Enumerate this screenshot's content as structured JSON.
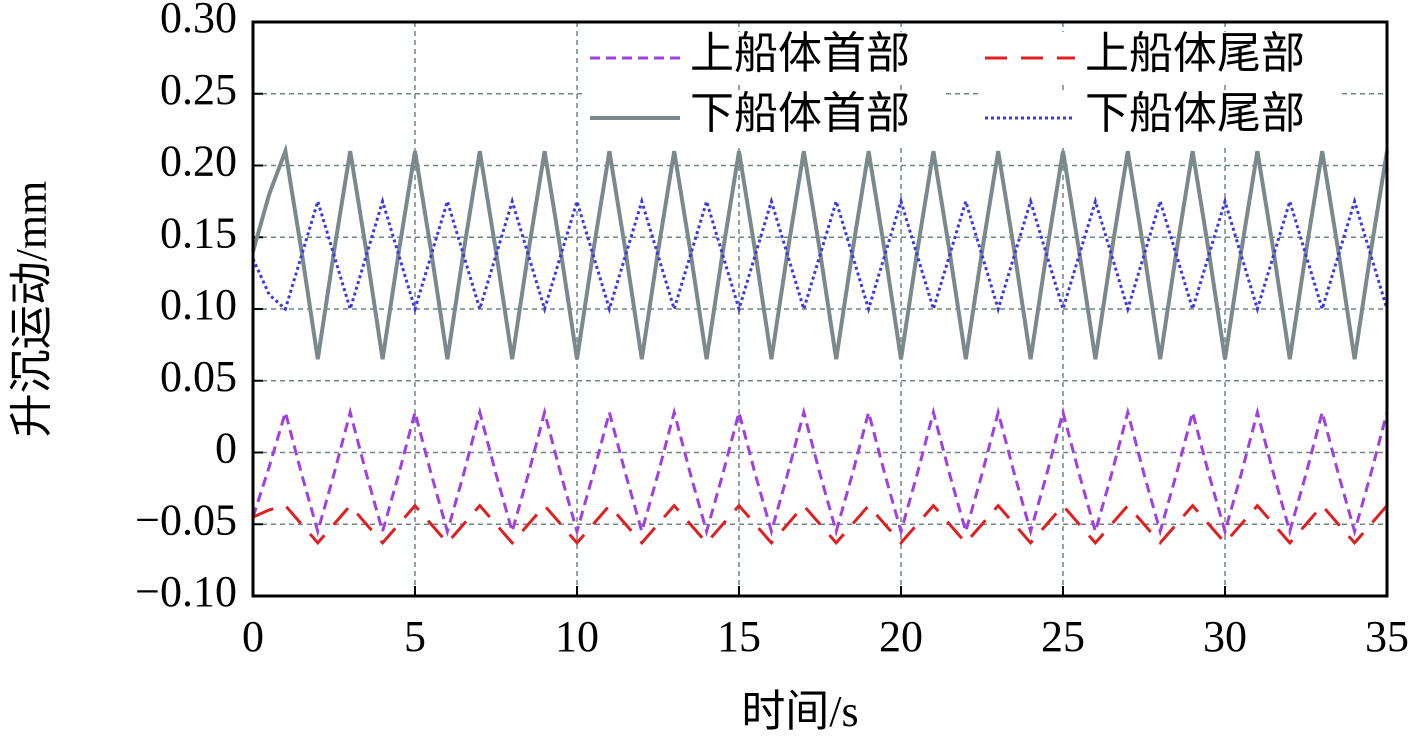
{
  "chart_data": {
    "type": "line",
    "xlabel": "时间/s",
    "ylabel": "升沉运动/mm",
    "x": [
      0,
      0.5,
      1,
      1.5,
      2,
      2.5,
      3,
      3.5,
      4,
      4.5,
      5,
      5.5,
      6,
      6.5,
      7,
      7.5,
      8,
      8.5,
      9,
      9.5,
      10,
      10.5,
      11,
      11.5,
      12,
      12.5,
      13,
      13.5,
      14,
      14.5,
      15,
      15.5,
      16,
      16.5,
      17,
      17.5,
      18,
      18.5,
      19,
      19.5,
      20,
      20.5,
      21,
      21.5,
      22,
      22.5,
      23,
      23.5,
      24,
      24.5,
      25,
      25.5,
      26,
      26.5,
      27,
      27.5,
      28,
      28.5,
      29,
      29.5,
      30,
      30.5,
      31,
      31.5,
      32,
      32.5,
      33,
      33.5,
      34,
      34.5,
      35
    ],
    "series": [
      {
        "name": "上船体首部",
        "color": "#a040e0",
        "dash": "10,6",
        "width": 3,
        "values": [
          -0.045,
          -0.01,
          0.028,
          -0.015,
          -0.055,
          -0.015,
          0.028,
          -0.015,
          -0.055,
          -0.015,
          0.028,
          -0.015,
          -0.055,
          -0.015,
          0.028,
          -0.015,
          -0.055,
          -0.015,
          0.028,
          -0.015,
          -0.055,
          -0.015,
          0.028,
          -0.015,
          -0.055,
          -0.015,
          0.028,
          -0.015,
          -0.055,
          -0.015,
          0.028,
          -0.015,
          -0.055,
          -0.015,
          0.028,
          -0.015,
          -0.055,
          -0.015,
          0.028,
          -0.015,
          -0.055,
          -0.015,
          0.028,
          -0.015,
          -0.055,
          -0.015,
          0.028,
          -0.015,
          -0.055,
          -0.015,
          0.028,
          -0.015,
          -0.055,
          -0.015,
          0.028,
          -0.015,
          -0.055,
          -0.015,
          0.028,
          -0.015,
          -0.055,
          -0.015,
          0.028,
          -0.015,
          -0.055,
          -0.015,
          0.028,
          -0.015,
          -0.055,
          -0.015,
          0.028
        ]
      },
      {
        "name": "上船体尾部",
        "color": "#e02020",
        "dash": "22,14",
        "width": 3,
        "values": [
          -0.045,
          -0.04,
          -0.037,
          -0.05,
          -0.063,
          -0.05,
          -0.037,
          -0.05,
          -0.063,
          -0.05,
          -0.037,
          -0.05,
          -0.063,
          -0.05,
          -0.037,
          -0.05,
          -0.063,
          -0.05,
          -0.037,
          -0.05,
          -0.063,
          -0.05,
          -0.037,
          -0.05,
          -0.063,
          -0.05,
          -0.037,
          -0.05,
          -0.063,
          -0.05,
          -0.037,
          -0.05,
          -0.063,
          -0.05,
          -0.037,
          -0.05,
          -0.063,
          -0.05,
          -0.037,
          -0.05,
          -0.063,
          -0.05,
          -0.037,
          -0.05,
          -0.063,
          -0.05,
          -0.037,
          -0.05,
          -0.063,
          -0.05,
          -0.037,
          -0.05,
          -0.063,
          -0.05,
          -0.037,
          -0.05,
          -0.063,
          -0.05,
          -0.037,
          -0.05,
          -0.063,
          -0.05,
          -0.037,
          -0.05,
          -0.063,
          -0.05,
          -0.037,
          -0.05,
          -0.063,
          -0.05,
          -0.037
        ]
      },
      {
        "name": "下船体首部",
        "color": "#7a8a8c",
        "dash": "none",
        "width": 4,
        "values": [
          0.14,
          0.18,
          0.21,
          0.14,
          0.065,
          0.14,
          0.21,
          0.14,
          0.065,
          0.14,
          0.21,
          0.14,
          0.065,
          0.14,
          0.21,
          0.14,
          0.065,
          0.14,
          0.21,
          0.14,
          0.065,
          0.14,
          0.21,
          0.14,
          0.065,
          0.14,
          0.21,
          0.14,
          0.065,
          0.14,
          0.21,
          0.14,
          0.065,
          0.14,
          0.21,
          0.14,
          0.065,
          0.14,
          0.21,
          0.14,
          0.065,
          0.14,
          0.21,
          0.14,
          0.065,
          0.14,
          0.21,
          0.14,
          0.065,
          0.14,
          0.21,
          0.14,
          0.065,
          0.14,
          0.21,
          0.14,
          0.065,
          0.14,
          0.21,
          0.14,
          0.065,
          0.14,
          0.21,
          0.14,
          0.065,
          0.14,
          0.21,
          0.14,
          0.065,
          0.14,
          0.21
        ]
      },
      {
        "name": "下船体尾部",
        "color": "#3a3adf",
        "dash": "3,3",
        "width": 3,
        "values": [
          0.135,
          0.11,
          0.1,
          0.1375,
          0.175,
          0.1375,
          0.1,
          0.1375,
          0.175,
          0.1375,
          0.1,
          0.1375,
          0.175,
          0.1375,
          0.1,
          0.1375,
          0.175,
          0.1375,
          0.1,
          0.1375,
          0.175,
          0.1375,
          0.1,
          0.1375,
          0.175,
          0.1375,
          0.1,
          0.1375,
          0.175,
          0.1375,
          0.1,
          0.1375,
          0.175,
          0.1375,
          0.1,
          0.1375,
          0.175,
          0.1375,
          0.1,
          0.1375,
          0.175,
          0.1375,
          0.1,
          0.1375,
          0.175,
          0.1375,
          0.1,
          0.1375,
          0.175,
          0.1375,
          0.1,
          0.1375,
          0.175,
          0.1375,
          0.1,
          0.1375,
          0.175,
          0.1375,
          0.1,
          0.1375,
          0.175,
          0.1375,
          0.1,
          0.1375,
          0.175,
          0.1375,
          0.1,
          0.1375,
          0.175,
          0.1375,
          0.1
        ]
      }
    ],
    "xlim": [
      0,
      35
    ],
    "xticks": [
      0,
      5,
      10,
      15,
      20,
      25,
      30,
      35
    ],
    "ylim": [
      -0.1,
      0.3
    ],
    "yticks": [
      {
        "value": -0.1,
        "label": "−0.10"
      },
      {
        "value": -0.05,
        "label": "−0.05"
      },
      0,
      0.05,
      {
        "value": 0.1,
        "label": "0.10"
      },
      0.15,
      {
        "value": 0.2,
        "label": "0.20"
      },
      0.25,
      {
        "value": 0.3,
        "label": "0.30"
      }
    ],
    "grid": true,
    "legend": "upper right"
  }
}
